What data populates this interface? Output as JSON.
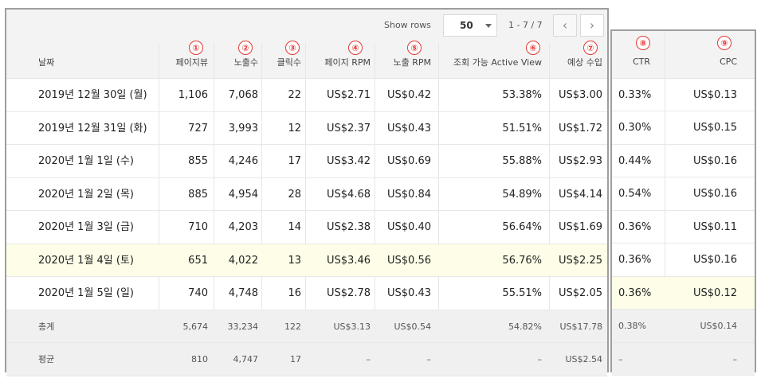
{
  "toolbar": {
    "show_rows_label": "Show rows",
    "rows_value": "50",
    "range": "1 - 7 / 7",
    "prev_icon": "chevron-left-icon",
    "next_icon": "chevron-right-icon"
  },
  "columns": {
    "date": "날짜",
    "pageviews": "페이지뷰",
    "impressions": "노출수",
    "clicks": "클릭수",
    "page_rpm": "페이지 RPM",
    "impr_rpm": "노출 RPM",
    "active_view": "조회 가능 Active View",
    "est_earnings": "예상 수입",
    "ctr": "CTR",
    "cpc": "CPC"
  },
  "markers": [
    "①",
    "②",
    "③",
    "④",
    "⑤",
    "⑥",
    "⑦",
    "⑧",
    "⑨"
  ],
  "rows": [
    {
      "date": "2019년 12월 30일 (월)",
      "pv": "1,106",
      "imp": "7,068",
      "clicks": "22",
      "page_rpm": "US$2.71",
      "imp_rpm": "US$0.42",
      "av": "53.38%",
      "earn": "US$3.00",
      "ctr": "0.33%",
      "cpc": "US$0.13"
    },
    {
      "date": "2019년 12월 31일 (화)",
      "pv": "727",
      "imp": "3,993",
      "clicks": "12",
      "page_rpm": "US$2.37",
      "imp_rpm": "US$0.43",
      "av": "51.51%",
      "earn": "US$1.72",
      "ctr": "0.30%",
      "cpc": "US$0.15"
    },
    {
      "date": "2020년 1월 1일 (수)",
      "pv": "855",
      "imp": "4,246",
      "clicks": "17",
      "page_rpm": "US$3.42",
      "imp_rpm": "US$0.69",
      "av": "55.88%",
      "earn": "US$2.93",
      "ctr": "0.44%",
      "cpc": "US$0.16"
    },
    {
      "date": "2020년 1월 2일 (목)",
      "pv": "885",
      "imp": "4,954",
      "clicks": "28",
      "page_rpm": "US$4.68",
      "imp_rpm": "US$0.84",
      "av": "54.89%",
      "earn": "US$4.14",
      "ctr": "0.54%",
      "cpc": "US$0.16"
    },
    {
      "date": "2020년 1월 3일 (금)",
      "pv": "710",
      "imp": "4,203",
      "clicks": "14",
      "page_rpm": "US$2.38",
      "imp_rpm": "US$0.40",
      "av": "56.64%",
      "earn": "US$1.69",
      "ctr": "0.36%",
      "cpc": "US$0.11"
    },
    {
      "date": "2020년 1월 4일 (토)",
      "pv": "651",
      "imp": "4,022",
      "clicks": "13",
      "page_rpm": "US$3.46",
      "imp_rpm": "US$0.56",
      "av": "56.76%",
      "earn": "US$2.25",
      "ctr": "0.36%",
      "cpc": "US$0.16"
    },
    {
      "date": "2020년 1월 5일 (일)",
      "pv": "740",
      "imp": "4,748",
      "clicks": "16",
      "page_rpm": "US$2.78",
      "imp_rpm": "US$0.43",
      "av": "55.51%",
      "earn": "US$2.05",
      "ctr": "0.36%",
      "cpc": "US$0.12"
    }
  ],
  "totals": {
    "label": "총계",
    "pv": "5,674",
    "imp": "33,234",
    "clicks": "122",
    "page_rpm": "US$3.13",
    "imp_rpm": "US$0.54",
    "av": "54.82%",
    "earn": "US$17.78",
    "ctr": "0.38%",
    "cpc": "US$0.14"
  },
  "average": {
    "label": "평균",
    "pv": "810",
    "imp": "4,747",
    "clicks": "17",
    "page_rpm": "–",
    "imp_rpm": "–",
    "av": "–",
    "earn": "US$2.54",
    "ctr": "–",
    "cpc": "–"
  },
  "colors": {
    "highlight_row": "#fdfde8",
    "marker_red": "#e53935",
    "panel_border": "#9e9e9e",
    "header_bg": "#f3f3f3"
  }
}
